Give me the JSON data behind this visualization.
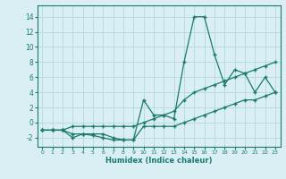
{
  "xlabel": "Humidex (Indice chaleur)",
  "bg_color": "#d9eff4",
  "grid_color": "#b8dce2",
  "line_color": "#1a7a6e",
  "xlim": [
    -0.5,
    23.5
  ],
  "ylim": [
    -3.2,
    15.5
  ],
  "yticks": [
    -2,
    0,
    2,
    4,
    6,
    8,
    10,
    12,
    14
  ],
  "xticks": [
    0,
    1,
    2,
    3,
    4,
    5,
    6,
    7,
    8,
    9,
    10,
    11,
    12,
    13,
    14,
    15,
    16,
    17,
    18,
    19,
    20,
    21,
    22,
    23
  ],
  "line1_x": [
    0,
    1,
    2,
    3,
    4,
    5,
    6,
    7,
    8,
    9,
    10,
    11,
    12,
    13,
    14,
    15,
    16,
    17,
    18,
    19,
    20,
    21,
    22,
    23
  ],
  "line1_y": [
    -1,
    -1,
    -1,
    -2,
    -1.5,
    -1.5,
    -1.5,
    -2,
    -2.3,
    -2.3,
    3,
    1,
    1,
    0.5,
    8,
    14,
    14,
    9,
    5,
    7,
    6.5,
    4,
    6,
    4
  ],
  "line2_x": [
    0,
    1,
    2,
    3,
    4,
    5,
    6,
    7,
    8,
    9,
    10,
    11,
    12,
    13,
    14,
    15,
    16,
    17,
    18,
    19,
    20,
    21,
    22,
    23
  ],
  "line2_y": [
    -1,
    -1,
    -1,
    -0.5,
    -0.5,
    -0.5,
    -0.5,
    -0.5,
    -0.5,
    -0.5,
    0,
    0.5,
    1,
    1.5,
    3,
    4,
    4.5,
    5,
    5.5,
    6,
    6.5,
    7,
    7.5,
    8
  ],
  "line3_x": [
    0,
    1,
    2,
    3,
    4,
    5,
    6,
    7,
    8,
    9,
    10,
    11,
    12,
    13,
    14,
    15,
    16,
    17,
    18,
    19,
    20,
    21,
    22,
    23
  ],
  "line3_y": [
    -1,
    -1,
    -1,
    -1.5,
    -1.5,
    -1.7,
    -2,
    -2.3,
    -2.3,
    -2.3,
    -0.5,
    -0.5,
    -0.5,
    -0.5,
    0,
    0.5,
    1,
    1.5,
    2,
    2.5,
    3,
    3,
    3.5,
    4
  ]
}
